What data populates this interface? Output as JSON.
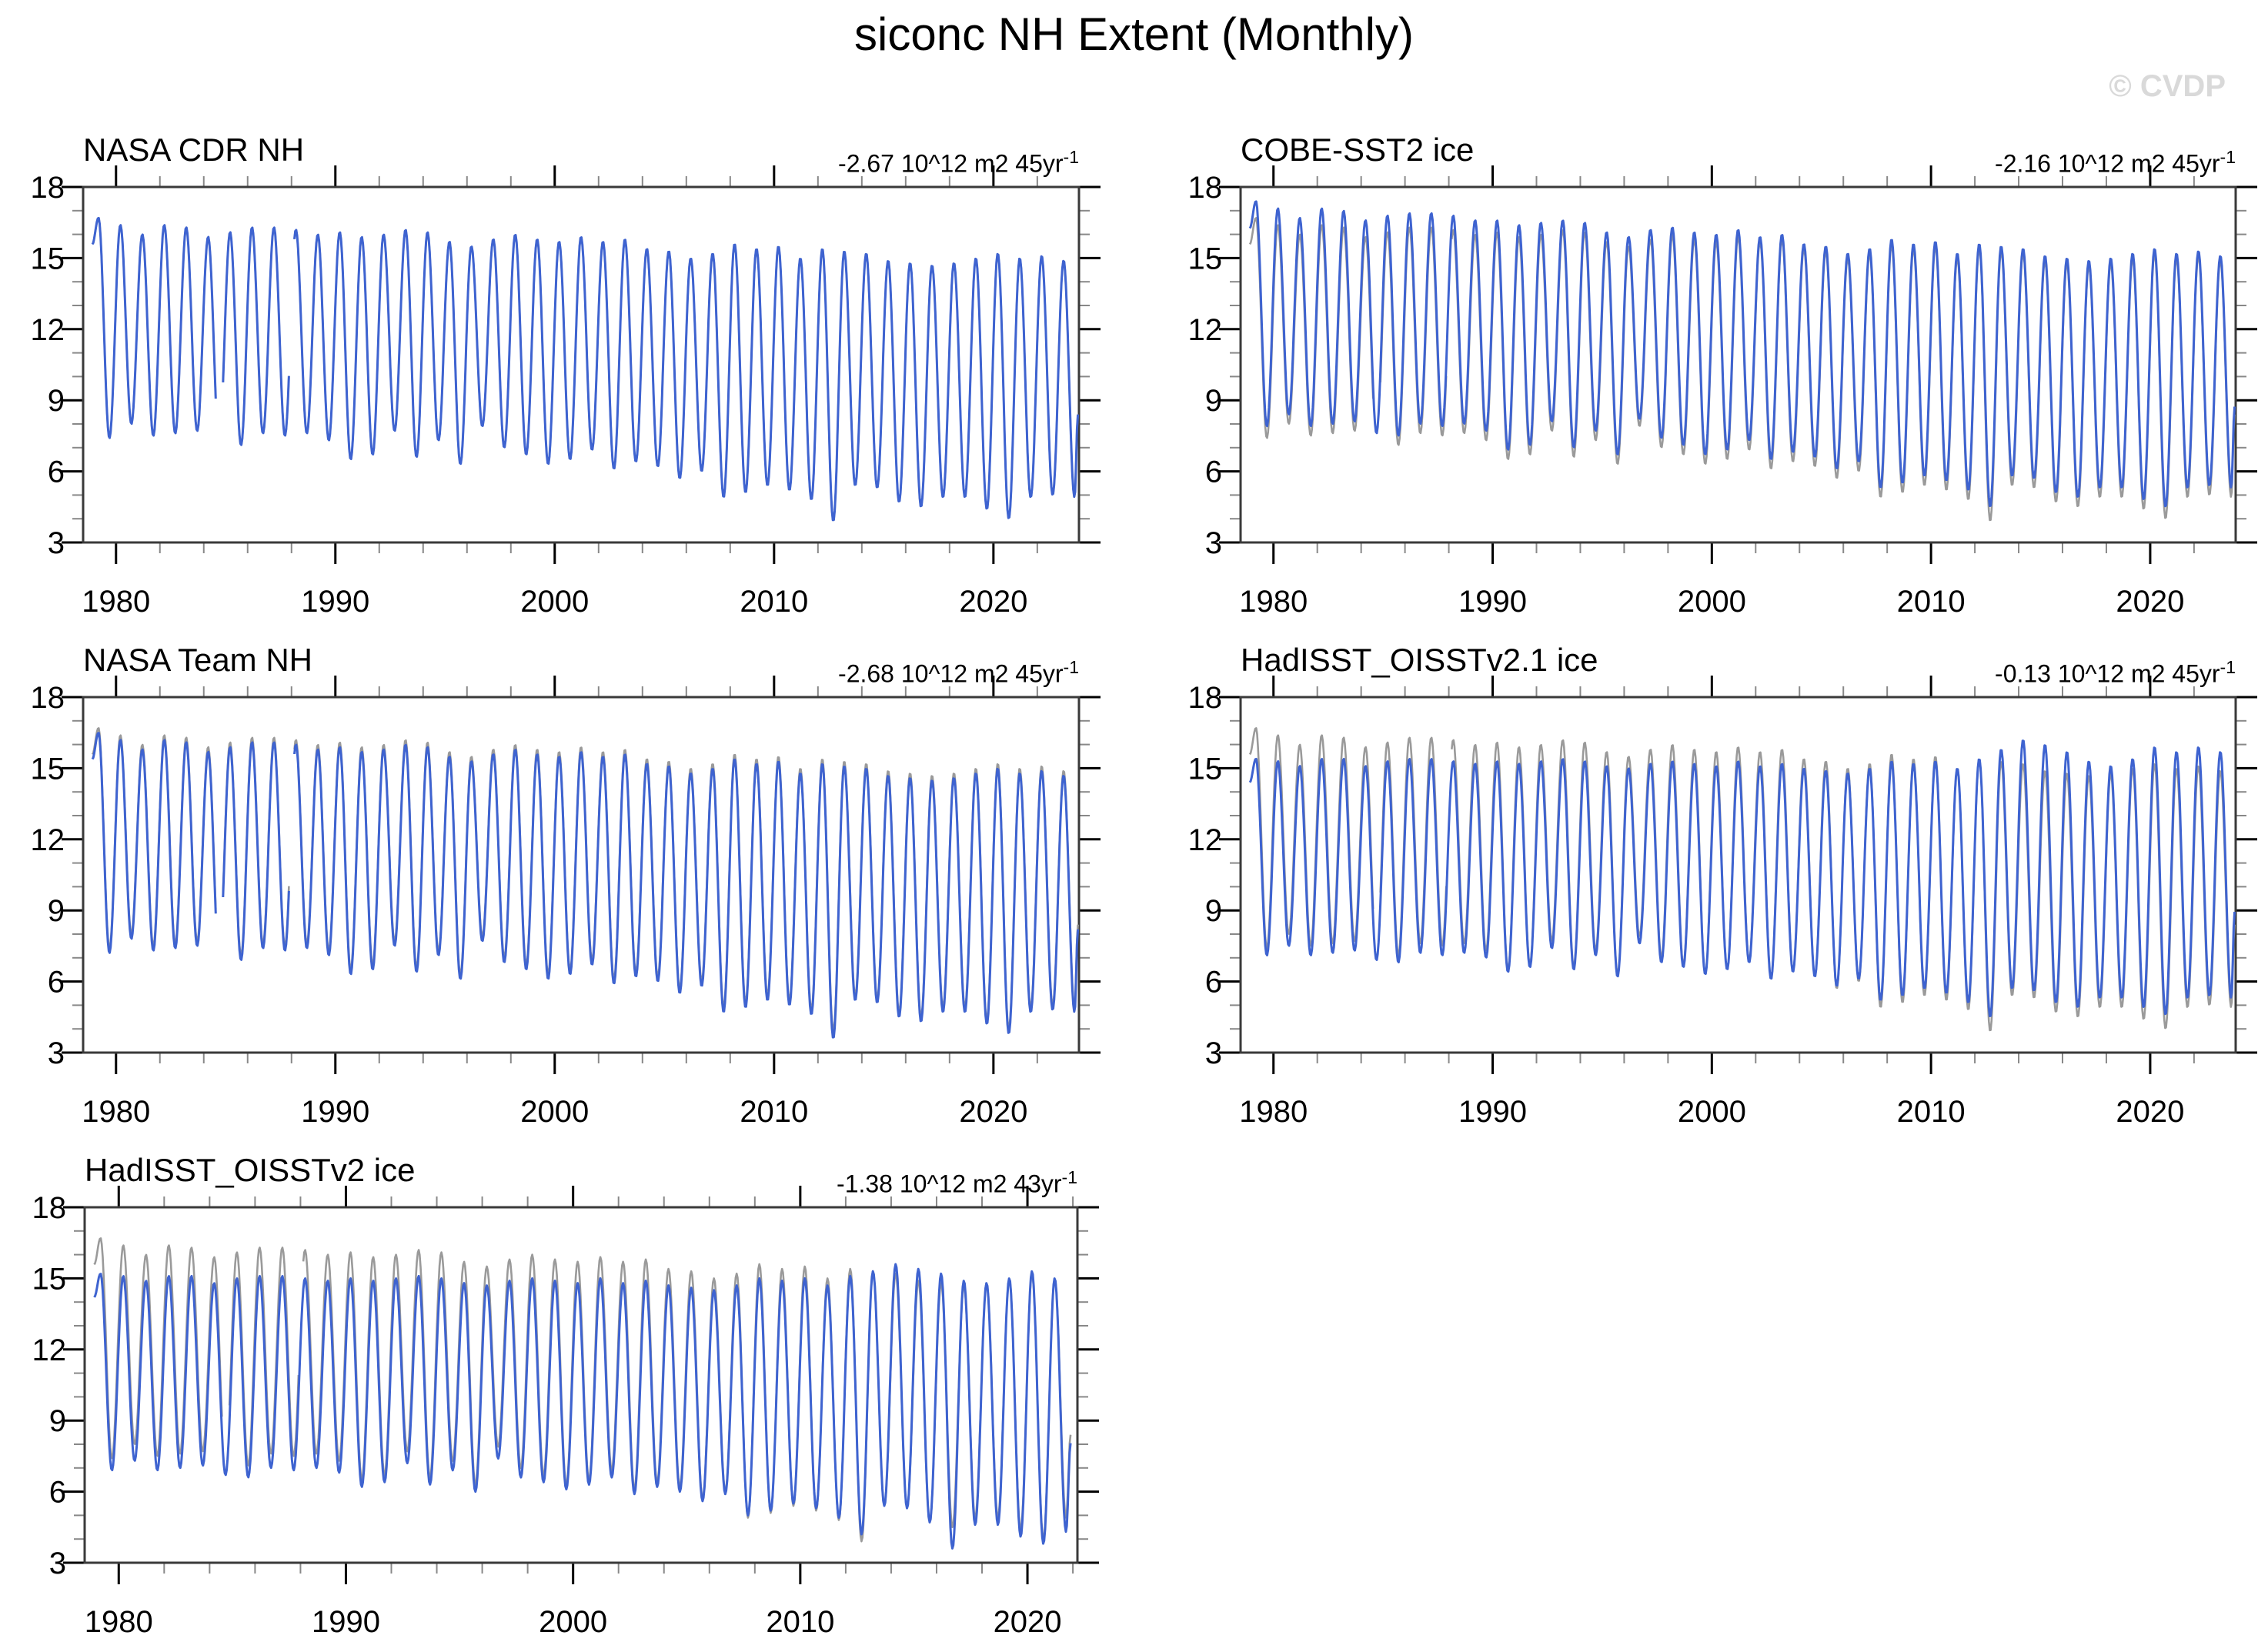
{
  "title": "siconc NH Extent (Monthly)",
  "watermark": "© CVDP",
  "colors": {
    "dataset_line": "#3e63d0",
    "reference_line": "#9a9a9a",
    "axis_box": "#3a3a3a",
    "major_tick": "#000000",
    "minor_tick": "#888888",
    "watermark": "#d9d9d9",
    "text": "#000000"
  },
  "reference_series": {
    "name": "NASA CDR NH (reference)",
    "start_year": 1979,
    "yearly_max": [
      16.7,
      16.4,
      16.0,
      16.4,
      16.3,
      15.9,
      16.1,
      16.3,
      16.3,
      16.2,
      16.0,
      16.1,
      15.9,
      16.0,
      16.2,
      16.1,
      15.7,
      15.5,
      15.8,
      16.0,
      15.8,
      15.7,
      15.9,
      15.7,
      15.8,
      15.4,
      15.3,
      15.0,
      15.2,
      15.6,
      15.4,
      15.5,
      15.0,
      15.4,
      15.3,
      15.2,
      14.9,
      14.8,
      14.7,
      14.8,
      15.0,
      15.2,
      15.0,
      15.1,
      14.9
    ],
    "yearly_min": [
      7.4,
      8.0,
      7.5,
      7.6,
      7.7,
      7.2,
      7.1,
      7.6,
      7.5,
      7.6,
      7.3,
      6.5,
      6.7,
      7.7,
      6.6,
      7.3,
      6.3,
      7.9,
      7.0,
      6.7,
      6.3,
      6.5,
      6.9,
      6.1,
      6.4,
      6.2,
      5.7,
      6.0,
      4.9,
      5.1,
      5.4,
      5.2,
      4.8,
      3.9,
      5.4,
      5.3,
      4.7,
      4.5,
      4.9,
      4.9,
      4.4,
      4.0,
      4.9,
      5.0,
      4.9
    ],
    "gaps": [
      [
        1984.55,
        1984.85
      ],
      [
        1987.92,
        1988.12
      ]
    ]
  },
  "chart_data": [
    {
      "type": "line",
      "title": "NASA CDR NH",
      "trend_text": "-2.67 10^12 m2 45yr",
      "trend_sup": "-1",
      "x_range": [
        1978.5,
        2023.9
      ],
      "y_range": [
        3,
        18
      ],
      "data_end": 2023.85,
      "start_year": 1979,
      "x_ticks": [
        1980,
        1990,
        2000,
        2010,
        2020
      ],
      "x_minor_step": 2,
      "y_ticks": [
        3,
        6,
        9,
        12,
        15,
        18
      ],
      "y_minor_step": 1,
      "series_note": "monthly values oscillating between March max and September min envelopes",
      "gaps": [
        [
          1984.55,
          1984.85
        ],
        [
          1987.92,
          1988.12
        ]
      ],
      "show_reference": true,
      "yearly_max": [
        16.7,
        16.4,
        16.0,
        16.4,
        16.3,
        15.9,
        16.1,
        16.3,
        16.3,
        16.2,
        16.0,
        16.1,
        15.9,
        16.0,
        16.2,
        16.1,
        15.7,
        15.5,
        15.8,
        16.0,
        15.8,
        15.7,
        15.9,
        15.7,
        15.8,
        15.4,
        15.3,
        15.0,
        15.2,
        15.6,
        15.4,
        15.5,
        15.0,
        15.4,
        15.3,
        15.2,
        14.9,
        14.8,
        14.7,
        14.8,
        15.0,
        15.2,
        15.0,
        15.1,
        14.9
      ],
      "yearly_min": [
        7.4,
        8.0,
        7.5,
        7.6,
        7.7,
        7.2,
        7.1,
        7.6,
        7.5,
        7.6,
        7.3,
        6.5,
        6.7,
        7.7,
        6.6,
        7.3,
        6.3,
        7.9,
        7.0,
        6.7,
        6.3,
        6.5,
        6.9,
        6.1,
        6.4,
        6.2,
        5.7,
        6.0,
        4.9,
        5.1,
        5.4,
        5.2,
        4.8,
        3.9,
        5.4,
        5.3,
        4.7,
        4.5,
        4.9,
        4.9,
        4.4,
        4.0,
        4.9,
        5.0,
        4.9
      ]
    },
    {
      "type": "line",
      "title": "COBE-SST2 ice",
      "trend_text": "-2.16 10^12 m2 45yr",
      "trend_sup": "-1",
      "x_range": [
        1978.5,
        2023.9
      ],
      "y_range": [
        3,
        18
      ],
      "data_end": 2023.85,
      "start_year": 1979,
      "x_ticks": [
        1980,
        1990,
        2000,
        2010,
        2020
      ],
      "x_minor_step": 2,
      "y_ticks": [
        3,
        6,
        9,
        12,
        15,
        18
      ],
      "y_minor_step": 1,
      "series_note": "monthly values oscillating between March max and September min envelopes",
      "gaps": [],
      "show_reference": true,
      "yearly_max": [
        17.4,
        17.1,
        16.7,
        17.1,
        17.0,
        16.6,
        16.8,
        16.9,
        16.9,
        16.8,
        16.6,
        16.6,
        16.4,
        16.5,
        16.6,
        16.5,
        16.1,
        15.9,
        16.2,
        16.3,
        16.1,
        16.0,
        16.2,
        15.9,
        16.0,
        15.6,
        15.5,
        15.2,
        15.4,
        15.8,
        15.6,
        15.7,
        15.2,
        15.6,
        15.5,
        15.4,
        15.1,
        15.0,
        14.9,
        15.0,
        15.2,
        15.4,
        15.2,
        15.3,
        15.1
      ],
      "yearly_min": [
        7.9,
        8.4,
        7.9,
        8.0,
        8.1,
        7.6,
        7.5,
        8.0,
        7.9,
        8.0,
        7.7,
        6.9,
        7.1,
        8.1,
        7.0,
        7.7,
        6.7,
        8.2,
        7.4,
        7.1,
        6.7,
        6.9,
        7.3,
        6.5,
        6.8,
        6.6,
        6.1,
        6.4,
        5.3,
        5.5,
        5.8,
        5.6,
        5.2,
        4.5,
        5.8,
        5.7,
        5.1,
        4.9,
        5.3,
        5.3,
        4.8,
        4.5,
        5.3,
        5.4,
        5.3
      ]
    },
    {
      "type": "line",
      "title": "NASA Team NH",
      "trend_text": "-2.68 10^12 m2 45yr",
      "trend_sup": "-1",
      "x_range": [
        1978.5,
        2023.9
      ],
      "y_range": [
        3,
        18
      ],
      "data_end": 2023.85,
      "start_year": 1979,
      "x_ticks": [
        1980,
        1990,
        2000,
        2010,
        2020
      ],
      "x_minor_step": 2,
      "y_ticks": [
        3,
        6,
        9,
        12,
        15,
        18
      ],
      "y_minor_step": 1,
      "series_note": "monthly values oscillating between March max and September min envelopes",
      "gaps": [
        [
          1984.55,
          1984.85
        ],
        [
          1987.92,
          1988.12
        ]
      ],
      "show_reference": true,
      "yearly_max": [
        16.5,
        16.2,
        15.8,
        16.2,
        16.1,
        15.7,
        15.9,
        16.1,
        16.1,
        16.0,
        15.8,
        15.9,
        15.7,
        15.8,
        16.0,
        15.9,
        15.5,
        15.3,
        15.6,
        15.8,
        15.6,
        15.5,
        15.7,
        15.5,
        15.6,
        15.2,
        15.1,
        14.8,
        15.0,
        15.4,
        15.2,
        15.3,
        14.8,
        15.2,
        15.1,
        15.0,
        14.7,
        14.6,
        14.5,
        14.6,
        14.8,
        15.0,
        14.8,
        14.9,
        14.7
      ],
      "yearly_min": [
        7.2,
        7.8,
        7.3,
        7.4,
        7.5,
        7.0,
        6.9,
        7.4,
        7.3,
        7.4,
        7.1,
        6.3,
        6.5,
        7.5,
        6.4,
        7.1,
        6.1,
        7.7,
        6.8,
        6.5,
        6.1,
        6.3,
        6.7,
        5.9,
        6.2,
        6.0,
        5.5,
        5.8,
        4.7,
        4.9,
        5.2,
        5.0,
        4.6,
        3.6,
        5.2,
        5.1,
        4.5,
        4.3,
        4.7,
        4.7,
        4.2,
        3.8,
        4.7,
        4.8,
        4.7
      ]
    },
    {
      "type": "line",
      "title": "HadISST_OISSTv2.1 ice",
      "trend_text": "-0.13 10^12 m2 45yr",
      "trend_sup": "-1",
      "x_range": [
        1978.5,
        2023.9
      ],
      "y_range": [
        3,
        18
      ],
      "data_end": 2023.85,
      "start_year": 1979,
      "x_ticks": [
        1980,
        1990,
        2000,
        2010,
        2020
      ],
      "x_minor_step": 2,
      "y_ticks": [
        3,
        6,
        9,
        12,
        15,
        18
      ],
      "y_minor_step": 1,
      "series_note": "monthly values oscillating between March max and September min envelopes",
      "gaps": [],
      "show_reference": true,
      "yearly_max": [
        15.4,
        15.3,
        15.1,
        15.4,
        15.4,
        15.1,
        15.3,
        15.4,
        15.4,
        15.3,
        15.2,
        15.3,
        15.2,
        15.3,
        15.4,
        15.3,
        15.1,
        15.0,
        15.2,
        15.3,
        15.2,
        15.1,
        15.3,
        15.1,
        15.2,
        15.0,
        14.9,
        14.8,
        15.0,
        15.3,
        15.2,
        15.3,
        15.0,
        15.4,
        15.8,
        16.2,
        16.0,
        15.7,
        15.3,
        15.1,
        15.4,
        15.9,
        15.7,
        15.9,
        15.7
      ],
      "yearly_min": [
        7.1,
        7.5,
        7.1,
        7.2,
        7.3,
        6.9,
        6.8,
        7.2,
        7.1,
        7.2,
        7.0,
        6.4,
        6.6,
        7.4,
        6.5,
        7.1,
        6.2,
        7.6,
        6.8,
        6.6,
        6.3,
        6.5,
        6.8,
        6.1,
        6.4,
        6.2,
        5.8,
        6.1,
        5.2,
        5.4,
        5.7,
        5.5,
        5.1,
        4.5,
        5.7,
        5.6,
        5.1,
        4.9,
        5.3,
        5.3,
        4.9,
        4.6,
        5.3,
        5.4,
        5.3
      ]
    },
    {
      "type": "line",
      "title": "HadISST_OISSTv2 ice",
      "trend_text": "-1.38 10^12 m2 43yr",
      "trend_sup": "-1",
      "x_range": [
        1978.5,
        2022.2
      ],
      "y_range": [
        3,
        18
      ],
      "data_end": 2021.9,
      "start_year": 1979,
      "x_ticks": [
        1980,
        1990,
        2000,
        2010,
        2020
      ],
      "x_minor_step": 2,
      "y_ticks": [
        3,
        6,
        9,
        12,
        15,
        18
      ],
      "y_minor_step": 1,
      "series_note": "monthly values oscillating between March max and September min envelopes",
      "gaps": [],
      "show_reference": true,
      "yearly_max": [
        15.2,
        15.1,
        14.9,
        15.1,
        15.1,
        14.8,
        15.0,
        15.1,
        15.1,
        15.0,
        14.9,
        15.0,
        14.9,
        15.0,
        15.1,
        15.0,
        14.8,
        14.7,
        14.9,
        15.0,
        14.9,
        14.8,
        15.0,
        14.8,
        14.9,
        14.7,
        14.6,
        14.5,
        14.7,
        15.0,
        14.9,
        15.0,
        14.7,
        15.1,
        15.3,
        15.6,
        15.4,
        15.2,
        14.9,
        14.8,
        15.0,
        15.3,
        15.0
      ],
      "yearly_min": [
        6.9,
        7.3,
        6.9,
        7.0,
        7.1,
        6.7,
        6.6,
        7.0,
        6.9,
        7.0,
        6.8,
        6.2,
        6.4,
        7.2,
        6.3,
        6.9,
        6.0,
        7.4,
        6.6,
        6.4,
        6.1,
        6.3,
        6.6,
        5.9,
        6.2,
        6.0,
        5.6,
        5.9,
        5.0,
        5.2,
        5.5,
        5.3,
        4.9,
        4.2,
        5.4,
        5.3,
        4.7,
        3.6,
        4.6,
        4.6,
        4.1,
        3.8,
        4.3
      ]
    }
  ]
}
